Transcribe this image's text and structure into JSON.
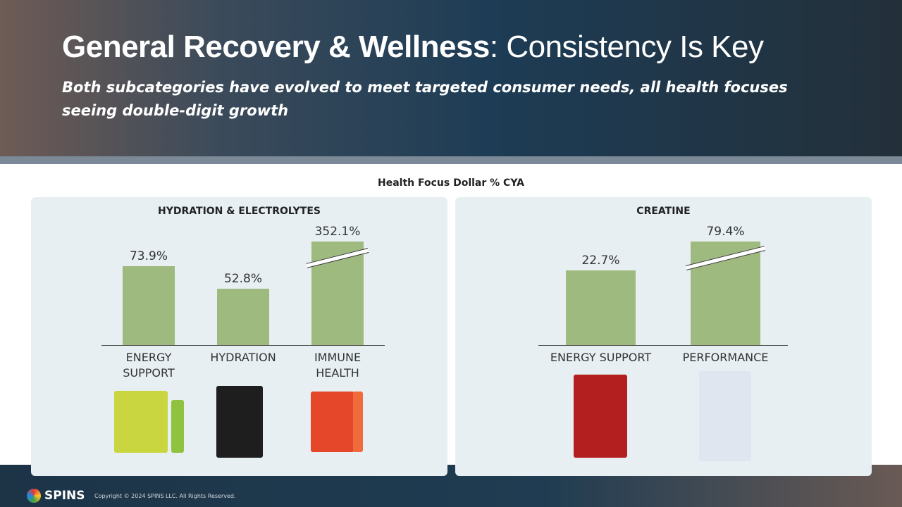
{
  "header": {
    "title_bold": "General Recovery & Wellness",
    "title_rest": ": Consistency Is Key",
    "subtitle": "Both subcategories have evolved to meet targeted consumer needs, all health focuses seeing double-digit growth"
  },
  "section_title": "Health Focus Dollar % CYA",
  "chart_data": [
    {
      "type": "bar",
      "title": "HYDRATION & ELECTROLYTES",
      "categories": [
        "ENERGY SUPPORT",
        "HYDRATION",
        "IMMUNE HEALTH"
      ],
      "values": [
        73.9,
        52.8,
        352.1
      ],
      "value_labels": [
        "73.9%",
        "52.8%",
        "352.1%"
      ],
      "color": "#9fba7f",
      "ylim": [
        0,
        97
      ],
      "axis_break": true
    },
    {
      "type": "bar",
      "title": "CREATINE",
      "categories": [
        "ENERGY SUPPORT",
        "PERFORMANCE"
      ],
      "values": [
        22.7,
        79.4
      ],
      "value_labels": [
        "22.7%",
        "79.4%"
      ],
      "color": "#9fba7f",
      "ylim": [
        0,
        31.5
      ],
      "axis_break": true
    }
  ],
  "footer": {
    "brand": "SPINS",
    "copyright": "Copyright © 2024 SPINS LLC. All Rights Reserved."
  }
}
